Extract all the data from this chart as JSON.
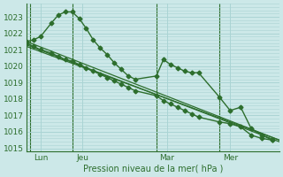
{
  "background_color": "#cce8e8",
  "grid_color": "#aad4d4",
  "line_color": "#2d6e2d",
  "xlabel": "Pression niveau de la mer( hPa )",
  "ylim": [
    1014.8,
    1023.8
  ],
  "yticks": [
    1015,
    1016,
    1017,
    1018,
    1019,
    1020,
    1021,
    1022,
    1023
  ],
  "xlim": [
    0,
    72
  ],
  "x_day_labels": [
    {
      "label": "Lun",
      "x": 4
    },
    {
      "label": "Jeu",
      "x": 16
    },
    {
      "label": "Mar",
      "x": 40
    },
    {
      "label": "Mer",
      "x": 58
    }
  ],
  "x_day_vlines": [
    1,
    13,
    37,
    55
  ],
  "series": [
    {
      "x": [
        0,
        2,
        4,
        7,
        9,
        11,
        13,
        15,
        17,
        19,
        21,
        23,
        25,
        27,
        29,
        31,
        37,
        39,
        41,
        43,
        45,
        47,
        49,
        55,
        58,
        61,
        64,
        67,
        70
      ],
      "y": [
        1021.5,
        1021.6,
        1021.8,
        1022.6,
        1023.1,
        1023.3,
        1023.3,
        1022.9,
        1022.3,
        1021.6,
        1021.1,
        1020.7,
        1020.2,
        1019.8,
        1019.4,
        1019.2,
        1019.4,
        1020.4,
        1020.1,
        1019.9,
        1019.7,
        1019.6,
        1019.6,
        1018.1,
        1017.3,
        1017.5,
        1016.2,
        1015.8,
        1015.5
      ],
      "linewidth": 1.0,
      "marker": "D",
      "markersize": 2.5
    },
    {
      "x": [
        0,
        72
      ],
      "y": [
        1021.5,
        1015.5
      ],
      "linewidth": 0.9,
      "marker": null,
      "markersize": 0
    },
    {
      "x": [
        0,
        72
      ],
      "y": [
        1021.3,
        1015.4
      ],
      "linewidth": 0.9,
      "marker": null,
      "markersize": 0
    },
    {
      "x": [
        0,
        72
      ],
      "y": [
        1021.2,
        1015.5
      ],
      "linewidth": 0.9,
      "marker": null,
      "markersize": 0
    },
    {
      "x": [
        0,
        2,
        4,
        7,
        9,
        11,
        13,
        15,
        17,
        19,
        21,
        23,
        25,
        27,
        29,
        31,
        37,
        39,
        41,
        43,
        45,
        47,
        49,
        55,
        58,
        61,
        64,
        67,
        70
      ],
      "y": [
        1021.4,
        1021.2,
        1021.0,
        1020.8,
        1020.6,
        1020.4,
        1020.3,
        1020.1,
        1019.9,
        1019.7,
        1019.5,
        1019.3,
        1019.1,
        1018.9,
        1018.7,
        1018.5,
        1018.2,
        1017.9,
        1017.7,
        1017.5,
        1017.3,
        1017.1,
        1016.9,
        1016.6,
        1016.5,
        1016.3,
        1015.8,
        1015.6,
        1015.5
      ],
      "linewidth": 1.0,
      "marker": "D",
      "markersize": 2.5
    }
  ]
}
